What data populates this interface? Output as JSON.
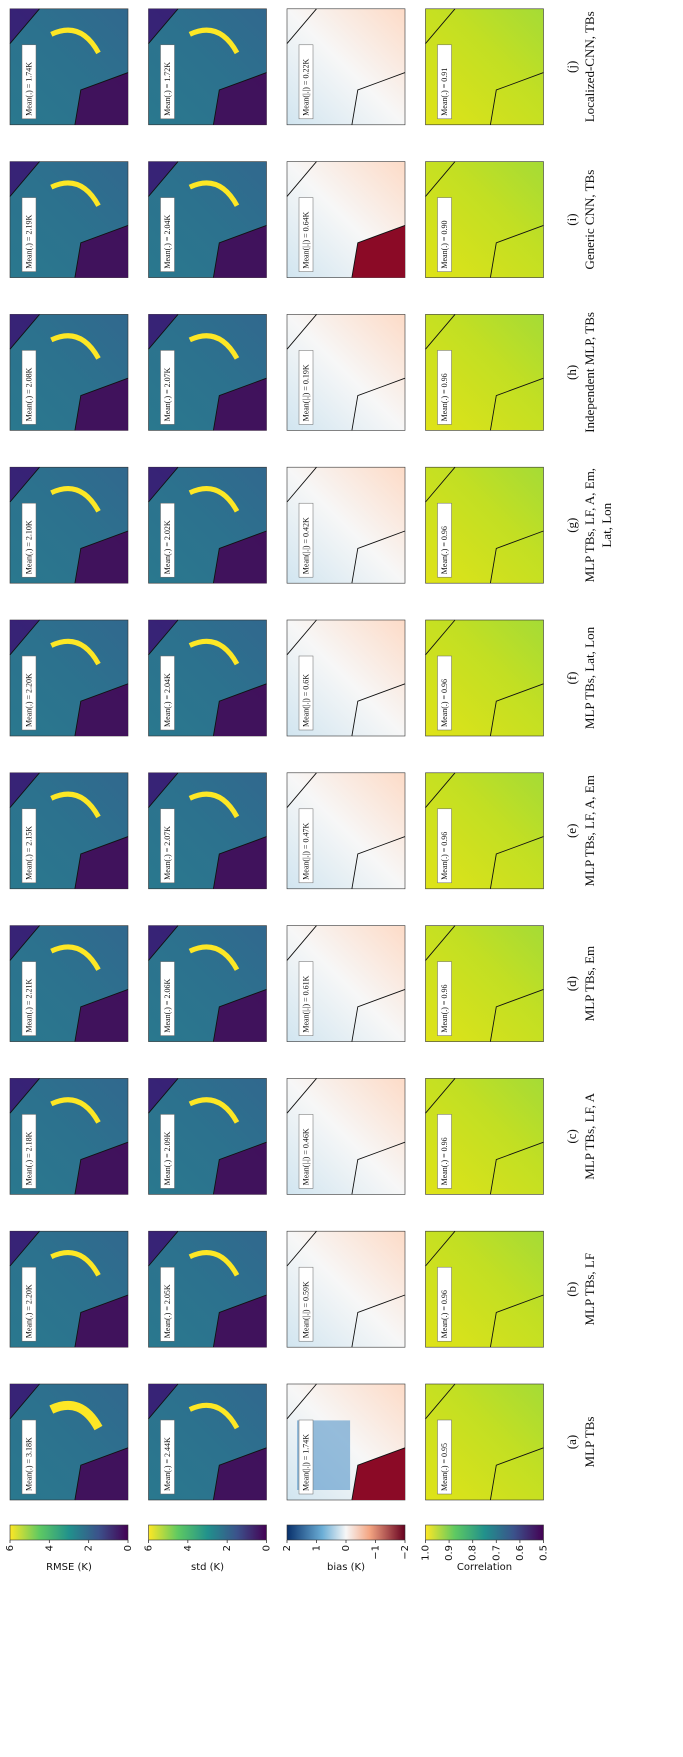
{
  "rows": [
    {
      "colorbar": {
        "label": "RMSE (K)",
        "lim": [
          0,
          6
        ],
        "ticks": [
          6,
          4,
          2,
          0
        ]
      },
      "labels": [
        "Mean(.) = 3.18K",
        "Mean(.) = 2.20K",
        "Mean(.) = 2.18K",
        "Mean(.) = 2.21K",
        "Mean(.) = 2.15K",
        "Mean(.) = 2.20K",
        "Mean(.) = 2.10K",
        "Mean(.) = 2.08K",
        "Mean(.) = 2.19K",
        "Mean(.) = 1.74K"
      ]
    },
    {
      "colorbar": {
        "label": "std (K)",
        "lim": [
          0,
          6
        ],
        "ticks": [
          6,
          4,
          2,
          0
        ]
      },
      "labels": [
        "Mean(.) = 2.44K",
        "Mean(.) = 2.05K",
        "Mean(.) = 2.09K",
        "Mean(.) = 2.06K",
        "Mean(.) = 2.07K",
        "Mean(.) = 2.04K",
        "Mean(.) = 2.02K",
        "Mean(.) = 2.07K",
        "Mean(.) = 2.04K",
        "Mean(.) = 1.72K"
      ]
    },
    {
      "colorbar": {
        "label": "bias (K)",
        "lim": [
          -2,
          2
        ],
        "ticks": [
          2,
          1,
          0,
          {
            "value": -1,
            "label": "−1"
          },
          {
            "value": -2,
            "label": "−2"
          }
        ]
      },
      "labels": [
        "Mean(|.|) = 1.74K",
        "Mean(|.|) = 0.59K",
        "Mean(|.|) = 0.46K",
        "Mean(|.|) = 0.61K",
        "Mean(|.|) = 0.47K",
        "Mean(|.|) = 0.6K",
        "Mean(|.|) = 0.42K",
        "Mean(|.|) = 0.19K",
        "Mean(|.|) = 0.64K",
        "Mean(|.|) = 0.22K"
      ]
    },
    {
      "colorbar": {
        "label": "Correlation",
        "lim": [
          0.5,
          1.0
        ],
        "ticks": [
          {
            "value": 1.0,
            "label": "1.0"
          },
          0.9,
          0.8,
          0.7,
          0.6,
          0.5
        ]
      },
      "labels": [
        "Mean(.) = 0.95",
        "Mean(.) = 0.96",
        "Mean(.) = 0.96",
        "Mean(.) = 0.96",
        "Mean(.) = 0.96",
        "Mean(.) = 0.96",
        "Mean(.) = 0.96",
        "Mean(.) = 0.96",
        "Mean(.) = 0.90",
        "Mean(.) = 0.91"
      ]
    }
  ],
  "captions": [
    {
      "tag": "(a)",
      "lines": [
        "MLP TBs"
      ]
    },
    {
      "tag": "(b)",
      "lines": [
        "MLP TBs, LF"
      ]
    },
    {
      "tag": "(c)",
      "lines": [
        "MLP TBs, LF, A"
      ]
    },
    {
      "tag": "(d)",
      "lines": [
        "MLP TBs, Em"
      ]
    },
    {
      "tag": "(e)",
      "lines": [
        "MLP TBs, LF, A, Em"
      ]
    },
    {
      "tag": "(f)",
      "lines": [
        "MLP TBs, Lat, Lon"
      ]
    },
    {
      "tag": "(g)",
      "lines": [
        "MLP TBs, LF, A, Em,",
        "Lat, Lon"
      ]
    },
    {
      "tag": "(h)",
      "lines": [
        "Independent MLP, TBs"
      ]
    },
    {
      "tag": "(i)",
      "lines": [
        "Generic CNN, TBs"
      ]
    },
    {
      "tag": "(j)",
      "lines": [
        "Localized-CNN, TBs"
      ]
    }
  ]
}
